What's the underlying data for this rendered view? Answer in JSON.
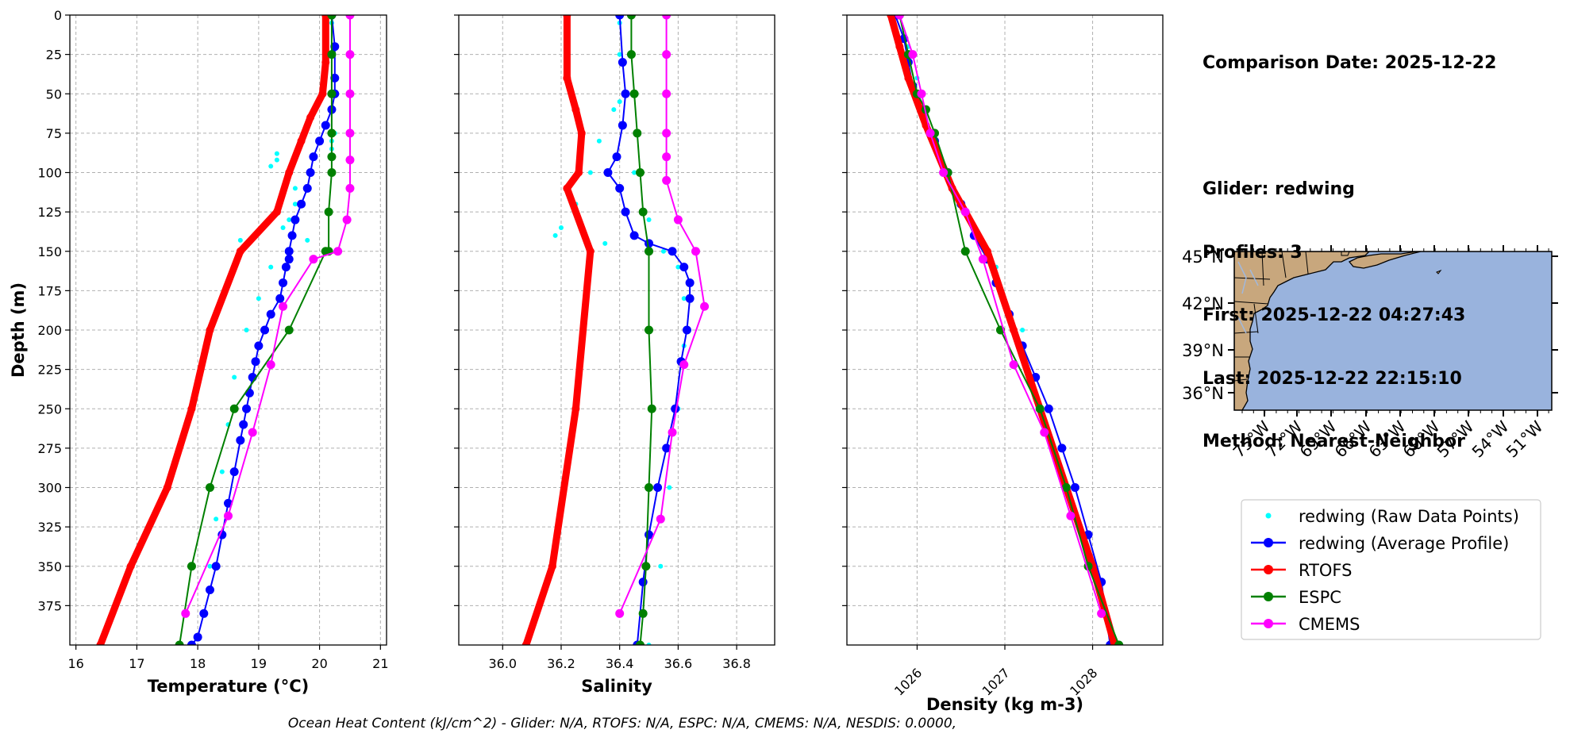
{
  "info": {
    "line1": "Comparison Date: 2025-12-22",
    "line2": "Glider: redwing",
    "line3": "Profiles: 3",
    "line4": "First: 2025-12-22 04:27:43",
    "line5": "Last: 2025-12-22 22:15:10",
    "line6": "Method: Nearest-Neighbor"
  },
  "footer": "Ocean Heat Content (kJ/cm^2) - Glider: N/A,  RTOFS: N/A,  ESPC: N/A,  CMEMS: N/A,  NESDIS: 0.0000,",
  "colors": {
    "raw": "#00ffff",
    "avg": "#0000ff",
    "rtofs": "#ff0000",
    "espc": "#008000",
    "cmems": "#ff00ff",
    "land": "#c8a77d",
    "ocean": "#99b3dd"
  },
  "chart_data": [
    {
      "type": "line",
      "xlabel": "Temperature (°C)",
      "ylabel": "Depth (m)",
      "xlim": [
        15.9,
        21.1
      ],
      "ylim": [
        400,
        0
      ],
      "xticks": [
        "16",
        "17",
        "18",
        "19",
        "20",
        "21"
      ],
      "yticks": [
        "0",
        "25",
        "50",
        "75",
        "100",
        "125",
        "150",
        "175",
        "200",
        "225",
        "250",
        "275",
        "300",
        "325",
        "350",
        "375"
      ],
      "series": [
        {
          "name": "redwing (Raw Data Points)",
          "x": [
            20.2,
            20.2,
            20.25,
            20.25,
            20.2,
            20.2,
            19.3,
            19.3,
            19.2,
            19.6,
            19.6,
            19.5,
            19.4,
            19.8,
            18.7,
            19.2,
            19.0,
            18.8,
            18.6,
            18.5,
            18.4,
            18.3,
            18.2,
            18.1
          ],
          "y": [
            5,
            25,
            50,
            75,
            80,
            85,
            88,
            92,
            96,
            110,
            120,
            130,
            135,
            143,
            143,
            160,
            180,
            200,
            230,
            260,
            290,
            320,
            350,
            380
          ]
        },
        {
          "name": "redwing (Average Profile)",
          "x": [
            20.2,
            20.25,
            20.25,
            20.25,
            20.2,
            20.1,
            20.0,
            19.9,
            19.85,
            19.8,
            19.7,
            19.6,
            19.55,
            19.5,
            19.5,
            19.45,
            19.4,
            19.35,
            19.2,
            19.1,
            19.0,
            18.95,
            18.9,
            18.85,
            18.8,
            18.75,
            18.7,
            18.6,
            18.5,
            18.4,
            18.3,
            18.2,
            18.1,
            18.0,
            17.9
          ],
          "y": [
            0,
            20,
            40,
            50,
            60,
            70,
            80,
            90,
            100,
            110,
            120,
            130,
            140,
            150,
            155,
            160,
            170,
            180,
            190,
            200,
            210,
            220,
            230,
            240,
            250,
            260,
            270,
            290,
            310,
            330,
            350,
            365,
            380,
            395,
            400
          ]
        },
        {
          "name": "RTOFS",
          "x": [
            20.1,
            20.1,
            20.05,
            19.85,
            19.7,
            19.5,
            19.3,
            18.7,
            18.2,
            17.9,
            17.5,
            16.9,
            16.4
          ],
          "y": [
            0,
            30,
            50,
            65,
            80,
            100,
            125,
            150,
            200,
            250,
            300,
            350,
            400
          ]
        },
        {
          "name": "ESPC",
          "x": [
            20.2,
            20.2,
            20.2,
            20.2,
            20.2,
            20.2,
            20.15,
            20.15,
            20.1,
            19.5,
            18.6,
            18.2,
            17.9,
            17.7
          ],
          "y": [
            0,
            25,
            50,
            75,
            90,
            100,
            125,
            150,
            150,
            200,
            250,
            300,
            350,
            400
          ]
        },
        {
          "name": "CMEMS",
          "x": [
            20.5,
            20.5,
            20.5,
            20.5,
            20.5,
            20.5,
            20.45,
            20.3,
            19.9,
            19.4,
            19.2,
            18.9,
            18.5,
            17.8
          ],
          "y": [
            0,
            25,
            50,
            75,
            92,
            110,
            130,
            150,
            155,
            185,
            222,
            265,
            318,
            380
          ]
        }
      ]
    },
    {
      "type": "line",
      "xlabel": "Salinity",
      "xlim": [
        35.85,
        36.93
      ],
      "ylim": [
        400,
        0
      ],
      "xticks": [
        "36.0",
        "36.2",
        "36.4",
        "36.6",
        "36.8"
      ],
      "series": [
        {
          "name": "redwing (Raw Data Points)",
          "x": [
            36.4,
            36.4,
            36.4,
            36.38,
            36.33,
            36.3,
            36.25,
            36.2,
            36.18,
            36.35,
            36.4,
            36.45,
            36.5,
            36.55,
            36.6,
            36.62,
            36.62,
            36.6,
            36.57,
            36.54,
            36.5
          ],
          "y": [
            5,
            25,
            55,
            60,
            80,
            100,
            120,
            135,
            140,
            145,
            110,
            100,
            130,
            150,
            160,
            180,
            210,
            250,
            300,
            350,
            400
          ]
        },
        {
          "name": "redwing (Average Profile)",
          "x": [
            36.4,
            36.41,
            36.42,
            36.41,
            36.39,
            36.36,
            36.4,
            36.42,
            36.45,
            36.5,
            36.58,
            36.62,
            36.64,
            36.64,
            36.63,
            36.61,
            36.59,
            36.56,
            36.53,
            36.5,
            36.48,
            36.46
          ],
          "y": [
            0,
            30,
            50,
            70,
            90,
            100,
            110,
            125,
            140,
            145,
            150,
            160,
            170,
            180,
            200,
            220,
            250,
            275,
            300,
            330,
            360,
            400
          ]
        },
        {
          "name": "RTOFS",
          "x": [
            36.22,
            36.22,
            36.25,
            36.27,
            36.26,
            36.22,
            36.3,
            36.25,
            36.17,
            36.08
          ],
          "y": [
            0,
            40,
            60,
            75,
            100,
            110,
            150,
            250,
            350,
            400
          ]
        },
        {
          "name": "ESPC",
          "x": [
            36.44,
            36.44,
            36.45,
            36.46,
            36.47,
            36.48,
            36.5,
            36.5,
            36.51,
            36.5,
            36.49,
            36.48,
            36.47
          ],
          "y": [
            0,
            25,
            50,
            75,
            100,
            125,
            150,
            200,
            250,
            300,
            350,
            380,
            400
          ]
        },
        {
          "name": "CMEMS",
          "x": [
            36.56,
            36.56,
            36.56,
            36.56,
            36.56,
            36.56,
            36.6,
            36.66,
            36.69,
            36.62,
            36.58,
            36.54,
            36.4
          ],
          "y": [
            0,
            25,
            50,
            75,
            90,
            105,
            130,
            150,
            185,
            222,
            265,
            320,
            380
          ]
        }
      ]
    },
    {
      "type": "line",
      "xlabel": "Density (kg m-3)",
      "xlim": [
        1025.2,
        1028.8
      ],
      "ylim": [
        400,
        0
      ],
      "xticks": [
        "1026",
        "1027",
        "1028"
      ],
      "series": [
        {
          "name": "redwing (Raw Data Points)",
          "x": [
            1025.8,
            1025.9,
            1026.0,
            1026.1,
            1026.2,
            1026.3,
            1026.4,
            1026.5,
            1026.6,
            1026.7,
            1026.8,
            1026.9,
            1027.2,
            1027.5,
            1027.8,
            1028.1
          ],
          "y": [
            0,
            20,
            40,
            60,
            80,
            100,
            110,
            120,
            130,
            140,
            150,
            160,
            200,
            250,
            300,
            380
          ]
        },
        {
          "name": "redwing (Average Profile)",
          "x": [
            1025.75,
            1025.85,
            1025.9,
            1025.95,
            1026.05,
            1026.2,
            1026.35,
            1026.5,
            1026.65,
            1026.8,
            1026.9,
            1027.05,
            1027.2,
            1027.35,
            1027.5,
            1027.65,
            1027.8,
            1027.95,
            1028.1,
            1028.2
          ],
          "y": [
            0,
            15,
            30,
            45,
            60,
            80,
            100,
            120,
            140,
            155,
            170,
            190,
            210,
            230,
            250,
            275,
            300,
            330,
            360,
            400
          ]
        },
        {
          "name": "RTOFS",
          "x": [
            1025.7,
            1025.8,
            1025.9,
            1026.1,
            1026.4,
            1026.8,
            1027.1,
            1027.4,
            1027.7,
            1028.0,
            1028.25
          ],
          "y": [
            0,
            20,
            40,
            70,
            110,
            150,
            200,
            250,
            300,
            350,
            400
          ]
        },
        {
          "name": "ESPC",
          "x": [
            1025.8,
            1025.9,
            1026.0,
            1026.1,
            1026.2,
            1026.35,
            1026.55,
            1026.95,
            1027.4,
            1027.7,
            1027.95,
            1028.3
          ],
          "y": [
            0,
            25,
            50,
            60,
            75,
            100,
            150,
            200,
            250,
            300,
            350,
            400
          ]
        },
        {
          "name": "CMEMS",
          "x": [
            1025.8,
            1025.95,
            1026.05,
            1026.15,
            1026.3,
            1026.55,
            1026.75,
            1027.1,
            1027.45,
            1027.75,
            1028.1
          ],
          "y": [
            0,
            25,
            50,
            75,
            100,
            125,
            155,
            222,
            265,
            318,
            380
          ]
        }
      ]
    },
    {
      "type": "map",
      "lat_ticks": [
        "45°N",
        "42°N",
        "39°N",
        "36°N"
      ],
      "lon_ticks": [
        "75°W",
        "72°W",
        "69°W",
        "66°W",
        "63°W",
        "60°W",
        "57°W",
        "54°W",
        "51°W"
      ]
    }
  ],
  "legend": [
    {
      "label": "redwing (Raw Data Points)",
      "key": "raw",
      "marker": "point"
    },
    {
      "label": "redwing (Average Profile)",
      "key": "avg",
      "marker": "circle"
    },
    {
      "label": "RTOFS",
      "key": "rtofs",
      "marker": "circle"
    },
    {
      "label": "ESPC",
      "key": "espc",
      "marker": "circle"
    },
    {
      "label": "CMEMS",
      "key": "cmems",
      "marker": "circle"
    }
  ]
}
